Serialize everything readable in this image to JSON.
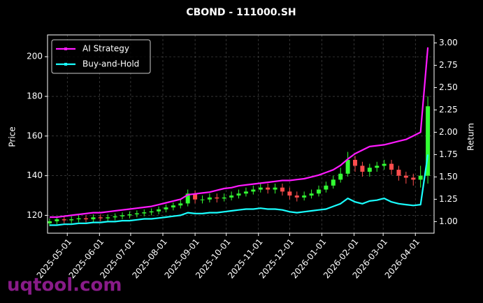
{
  "chart_data": {
    "type": "candlestick",
    "title": "CBOND - 111000.SH",
    "ylabel": "Price",
    "y2label": "Return",
    "watermark": "uqtool.com",
    "up_color": "#33ff33",
    "down_color": "#ff4d4d",
    "grid": true,
    "legend": "upper left",
    "xlim": [
      "2025-04-12",
      "2026-04-19"
    ],
    "xticks": [
      "2025-05-01",
      "2025-06-01",
      "2025-07-01",
      "2025-08-01",
      "2025-09-01",
      "2025-10-01",
      "2025-11-01",
      "2025-12-01",
      "2026-01-01",
      "2026-02-01",
      "2026-03-01",
      "2026-04-01"
    ],
    "ylim": [
      111,
      211
    ],
    "yticks": [
      120,
      140,
      160,
      180,
      200
    ],
    "y2lim": [
      0.87,
      3.09
    ],
    "y2ticks": [
      {
        "value": 1,
        "label": "1.00"
      },
      {
        "value": 1.25,
        "label": "1.25"
      },
      {
        "value": 1.5,
        "label": "1.50"
      },
      {
        "value": 1.75,
        "label": "1.75"
      },
      {
        "value": 2,
        "label": "2.00"
      },
      {
        "value": 2.25,
        "label": "2.25"
      },
      {
        "value": 2.5,
        "label": "2.50"
      },
      {
        "value": 2.75,
        "label": "2.75"
      },
      {
        "value": 3,
        "label": "3.00"
      }
    ],
    "x": [
      "2025-04-14",
      "2025-04-21",
      "2025-04-28",
      "2025-05-05",
      "2025-05-12",
      "2025-05-19",
      "2025-05-26",
      "2025-06-02",
      "2025-06-09",
      "2025-06-16",
      "2025-06-23",
      "2025-06-30",
      "2025-07-07",
      "2025-07-14",
      "2025-07-21",
      "2025-07-28",
      "2025-08-04",
      "2025-08-11",
      "2025-08-18",
      "2025-08-25",
      "2025-09-01",
      "2025-09-08",
      "2025-09-15",
      "2025-09-22",
      "2025-09-29",
      "2025-10-06",
      "2025-10-13",
      "2025-10-20",
      "2025-10-27",
      "2025-11-03",
      "2025-11-10",
      "2025-11-17",
      "2025-11-24",
      "2025-12-01",
      "2025-12-08",
      "2025-12-15",
      "2025-12-22",
      "2025-12-29",
      "2026-01-05",
      "2026-01-12",
      "2026-01-19",
      "2026-01-26",
      "2026-02-02",
      "2026-02-09",
      "2026-02-16",
      "2026-02-23",
      "2026-03-02",
      "2026-03-09",
      "2026-03-16",
      "2026-03-23",
      "2026-03-30",
      "2026-04-06",
      "2026-04-13"
    ],
    "open": [
      116,
      117,
      118,
      117.5,
      118,
      118.5,
      118,
      119,
      118.5,
      119,
      119.5,
      120,
      120.5,
      121,
      121.5,
      122,
      123,
      124,
      125,
      126,
      131,
      128,
      128,
      129,
      128.5,
      129,
      130,
      131,
      132,
      133,
      134,
      133,
      134,
      132,
      130,
      129,
      130,
      131,
      133,
      135,
      138,
      141,
      148,
      145,
      142,
      144,
      145,
      146,
      143,
      140,
      139,
      138,
      140
    ],
    "high": [
      118.5,
      119.5,
      119.5,
      119.5,
      120,
      120,
      120.5,
      120.5,
      120.5,
      121,
      121.5,
      122,
      122.5,
      123,
      123.5,
      124.5,
      125.5,
      126.5,
      128,
      133,
      132.5,
      130,
      131,
      131,
      131,
      132,
      133,
      134,
      135,
      136,
      136,
      136,
      136,
      134,
      132,
      132,
      133,
      135,
      137,
      140,
      144,
      152,
      150,
      147,
      146,
      147,
      148,
      148,
      145,
      142,
      141,
      145,
      180
    ],
    "low": [
      114.5,
      115.5,
      116,
      116,
      116.5,
      116.5,
      116.5,
      117,
      117,
      117.5,
      118,
      118.5,
      119,
      119.5,
      120,
      120.5,
      121.5,
      122.5,
      123.5,
      124.5,
      126,
      126,
      126.5,
      126.5,
      127,
      127.5,
      128.5,
      129.5,
      130.5,
      131.5,
      131,
      131,
      130,
      128,
      127,
      127.5,
      128.5,
      129.5,
      131.5,
      133.5,
      136.5,
      139.5,
      142,
      139.5,
      139.5,
      142,
      143,
      140.5,
      137.5,
      136,
      135,
      134,
      136
    ],
    "close": [
      117,
      118,
      117.5,
      118,
      118.5,
      118,
      119,
      118.5,
      119,
      119.5,
      120,
      120.5,
      121,
      121.5,
      122,
      123,
      124,
      125,
      126,
      131,
      128,
      128,
      129,
      128.5,
      129,
      130,
      131,
      132,
      133,
      134,
      133,
      134,
      132,
      130,
      129,
      130,
      131,
      133,
      135,
      138,
      141,
      148,
      145,
      142,
      144,
      145,
      146,
      143,
      140,
      139,
      138,
      140,
      175
    ],
    "series": [
      {
        "name": "AI Strategy",
        "color": "#ff1aff",
        "axis": "y2",
        "values": [
          1.05,
          1.05,
          1.06,
          1.07,
          1.08,
          1.09,
          1.1,
          1.1,
          1.11,
          1.12,
          1.13,
          1.14,
          1.15,
          1.16,
          1.17,
          1.19,
          1.21,
          1.23,
          1.25,
          1.3,
          1.31,
          1.32,
          1.33,
          1.35,
          1.37,
          1.38,
          1.4,
          1.41,
          1.42,
          1.43,
          1.44,
          1.45,
          1.46,
          1.46,
          1.47,
          1.48,
          1.5,
          1.52,
          1.55,
          1.58,
          1.63,
          1.7,
          1.76,
          1.8,
          1.84,
          1.85,
          1.86,
          1.88,
          1.9,
          1.92,
          1.96,
          2,
          2.95
        ]
      },
      {
        "name": "Buy-and-Hold",
        "color": "#1affff",
        "axis": "y2",
        "values": [
          0.96,
          0.96,
          0.97,
          0.97,
          0.98,
          0.98,
          0.99,
          0.99,
          1,
          1,
          1.01,
          1.01,
          1.02,
          1.03,
          1.03,
          1.04,
          1.05,
          1.06,
          1.07,
          1.1,
          1.09,
          1.09,
          1.1,
          1.1,
          1.11,
          1.12,
          1.13,
          1.14,
          1.14,
          1.15,
          1.14,
          1.14,
          1.13,
          1.11,
          1.1,
          1.11,
          1.12,
          1.13,
          1.14,
          1.17,
          1.2,
          1.26,
          1.22,
          1.2,
          1.23,
          1.24,
          1.26,
          1.22,
          1.2,
          1.19,
          1.18,
          1.19,
          1.75
        ]
      }
    ]
  }
}
